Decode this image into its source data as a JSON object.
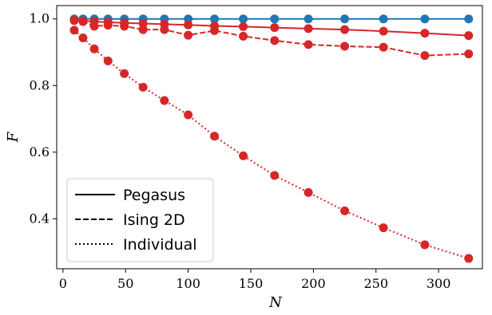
{
  "chart_data": {
    "type": "line",
    "xlabel": "N",
    "ylabel": "F",
    "xlim": [
      -5,
      335
    ],
    "ylim": [
      0.25,
      1.04
    ],
    "xticks": [
      0,
      50,
      100,
      150,
      200,
      250,
      300
    ],
    "yticks": [
      0.4,
      0.6,
      0.8,
      1.0
    ],
    "ytick_labels": [
      "0.4",
      "0.6",
      "0.8",
      "1.0"
    ],
    "grid": false,
    "legend_position": "lower-left",
    "legend": [
      {
        "label": "Pegasus",
        "dash": "solid"
      },
      {
        "label": "Ising 2D",
        "dash": "dashed"
      },
      {
        "label": "Individual",
        "dash": "dotted"
      }
    ],
    "x": [
      9,
      16,
      25,
      36,
      49,
      64,
      81,
      100,
      121,
      144,
      169,
      196,
      225,
      256,
      289,
      324
    ],
    "series": [
      {
        "color": "#1f77b4",
        "dash": "solid",
        "values": [
          1.0,
          1.0,
          1.0,
          1.0,
          1.0,
          1.0,
          1.0,
          1.0,
          1.0,
          1.0,
          1.0,
          1.0,
          1.0,
          1.0,
          1.0,
          1.0
        ]
      },
      {
        "color": "#d62728",
        "dash": "solid",
        "values": [
          0.996,
          0.994,
          0.992,
          0.99,
          0.988,
          0.986,
          0.984,
          0.982,
          0.979,
          0.977,
          0.974,
          0.971,
          0.968,
          0.963,
          0.957,
          0.95
        ]
      },
      {
        "color": "#d62728",
        "dash": "dashed",
        "values": [
          0.995,
          0.992,
          0.978,
          0.981,
          0.978,
          0.968,
          0.968,
          0.951,
          0.965,
          0.948,
          0.935,
          0.923,
          0.918,
          0.915,
          0.89,
          0.895
        ]
      },
      {
        "color": "#d62728",
        "dash": "dotted",
        "values": [
          0.966,
          0.943,
          0.91,
          0.874,
          0.836,
          0.795,
          0.755,
          0.712,
          0.648,
          0.589,
          0.53,
          0.479,
          0.424,
          0.373,
          0.322,
          0.281
        ]
      }
    ]
  }
}
